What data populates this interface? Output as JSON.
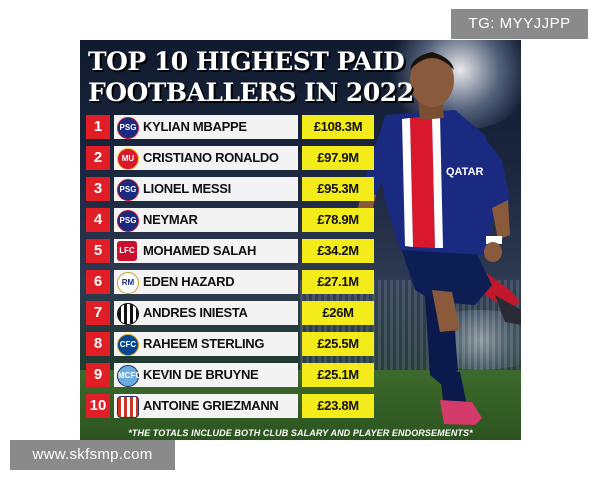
{
  "watermarks": {
    "top_right": "TG: MYYJJPP",
    "bottom_left": "www.skfsmp.com"
  },
  "poster": {
    "title_line1": "TOP 10 HIGHEST PAID",
    "title_line2": "FOOTBALLERS IN 2022",
    "footnote": "*THE TOTALS INCLUDE BOTH CLUB SALARY AND PLAYER ENDORSEMENTS*",
    "colors": {
      "rank_bg": "#e11d25",
      "name_bg": "#f3f3f3",
      "amount_bg": "#f4ec1a"
    },
    "rows": [
      {
        "rank": "1",
        "name": "KYLIAN MBAPPE",
        "amount": "£108.3M",
        "club_icon": "psg-crest-icon"
      },
      {
        "rank": "2",
        "name": "CRISTIANO RONALDO",
        "amount": "£97.9M",
        "club_icon": "man-united-crest-icon"
      },
      {
        "rank": "3",
        "name": "LIONEL MESSI",
        "amount": "£95.3M",
        "club_icon": "psg-crest-icon"
      },
      {
        "rank": "4",
        "name": "NEYMAR",
        "amount": "£78.9M",
        "club_icon": "psg-crest-icon"
      },
      {
        "rank": "5",
        "name": "MOHAMED SALAH",
        "amount": "£34.2M",
        "club_icon": "liverpool-crest-icon"
      },
      {
        "rank": "6",
        "name": "EDEN HAZARD",
        "amount": "£27.1M",
        "club_icon": "real-madrid-crest-icon"
      },
      {
        "rank": "7",
        "name": "ANDRES INIESTA",
        "amount": "£26M",
        "club_icon": "vissel-kobe-crest-icon"
      },
      {
        "rank": "8",
        "name": "RAHEEM STERLING",
        "amount": "£25.5M",
        "club_icon": "chelsea-crest-icon"
      },
      {
        "rank": "9",
        "name": "KEVIN DE BRUYNE",
        "amount": "£25.1M",
        "club_icon": "man-city-crest-icon"
      },
      {
        "rank": "10",
        "name": "ANTOINE GRIEZMANN",
        "amount": "£23.8M",
        "club_icon": "atletico-madrid-crest-icon"
      }
    ]
  }
}
